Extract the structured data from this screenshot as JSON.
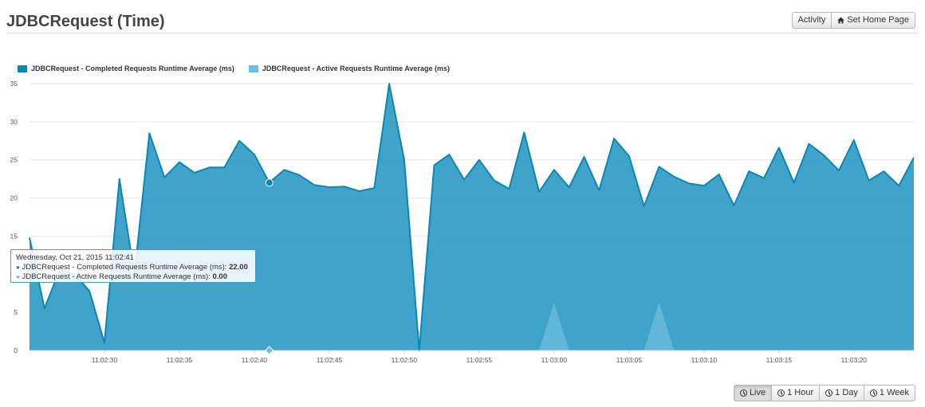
{
  "header": {
    "title": "JDBCRequest (Time)",
    "activity_label": "Activity",
    "home_label": "Set Home Page"
  },
  "range_buttons": [
    {
      "label": "Live",
      "active": true
    },
    {
      "label": "1 Hour",
      "active": false
    },
    {
      "label": "1 Day",
      "active": false
    },
    {
      "label": "1 Week",
      "active": false
    }
  ],
  "tooltip": {
    "time": "Wednesday, Oct 21, 2015 11:02:41",
    "completed_label": "JDBCRequest - Completed Requests Runtime Average (ms):",
    "completed_value": "22.00",
    "active_label": "JDBCRequest - Active Requests Runtime Average (ms):",
    "active_value": "0.00"
  },
  "colors": {
    "completed": "#0b87b4",
    "completed_fill": "#2596c3",
    "active": "#6bbedf"
  },
  "chart_data": {
    "type": "area",
    "title": "",
    "xlabel": "",
    "ylabel": "",
    "ylim": [
      0,
      35
    ],
    "xlim": [
      "11:02:25",
      "11:03:24"
    ],
    "yticks": [
      0,
      5,
      10,
      15,
      20,
      25,
      30,
      35
    ],
    "xticks": [
      "11:02:30",
      "11:02:35",
      "11:02:40",
      "11:02:45",
      "11:02:50",
      "11:02:55",
      "11:03:00",
      "11:03:05",
      "11:03:10",
      "11:03:15",
      "11:03:20"
    ],
    "grid": true,
    "legend_position": "top-left",
    "x": [
      "11:02:25",
      "11:02:26",
      "11:02:27",
      "11:02:28",
      "11:02:29",
      "11:02:30",
      "11:02:31",
      "11:02:32",
      "11:02:33",
      "11:02:34",
      "11:02:35",
      "11:02:36",
      "11:02:37",
      "11:02:38",
      "11:02:39",
      "11:02:40",
      "11:02:41",
      "11:02:42",
      "11:02:43",
      "11:02:44",
      "11:02:45",
      "11:02:46",
      "11:02:47",
      "11:02:48",
      "11:02:49",
      "11:02:50",
      "11:02:51",
      "11:02:52",
      "11:02:53",
      "11:02:54",
      "11:02:55",
      "11:02:56",
      "11:02:57",
      "11:02:58",
      "11:02:59",
      "11:03:00",
      "11:03:01",
      "11:03:02",
      "11:03:03",
      "11:03:04",
      "11:03:05",
      "11:03:06",
      "11:03:07",
      "11:03:08",
      "11:03:09",
      "11:03:10",
      "11:03:11",
      "11:03:12",
      "11:03:13",
      "11:03:14",
      "11:03:15",
      "11:03:16",
      "11:03:17",
      "11:03:18",
      "11:03:19",
      "11:03:20",
      "11:03:21",
      "11:03:22",
      "11:03:23",
      "11:03:24"
    ],
    "series": [
      {
        "name": "JDBCRequest - Completed Requests Runtime Average (ms)",
        "values": [
          14.8,
          5.5,
          10.5,
          10,
          7.8,
          1,
          22.5,
          10,
          28.5,
          22.7,
          24.7,
          23.3,
          24,
          24,
          27.5,
          25.7,
          22,
          23.7,
          23,
          21.7,
          21.4,
          21.5,
          20.9,
          21.3,
          35,
          25,
          0,
          24.3,
          25.7,
          22.4,
          25,
          22.3,
          21.2,
          28.6,
          20.8,
          23.7,
          21.4,
          25.4,
          21,
          27.8,
          25.5,
          18.9,
          24.1,
          22.8,
          21.9,
          21.6,
          23.1,
          19,
          23.5,
          22.6,
          26.6,
          22,
          27.1,
          25.6,
          23.6,
          27.6,
          22.3,
          23.5,
          21.6,
          25.3
        ]
      },
      {
        "name": "JDBCRequest - Active Requests Runtime Average (ms)",
        "values": [
          0,
          0,
          0,
          0,
          0,
          0,
          0,
          0,
          0,
          0,
          0,
          0,
          0,
          0,
          0,
          0,
          0,
          0,
          0,
          0,
          0,
          0,
          0,
          0,
          0,
          0,
          0,
          0,
          0,
          0,
          0,
          0,
          0,
          0,
          0,
          6.3,
          0,
          0,
          0,
          0,
          0,
          0,
          6.3,
          0,
          0,
          0,
          0,
          0,
          0,
          0,
          0,
          0,
          0,
          0,
          0,
          0,
          0,
          0,
          0,
          0
        ]
      }
    ],
    "highlight_index": 16
  }
}
